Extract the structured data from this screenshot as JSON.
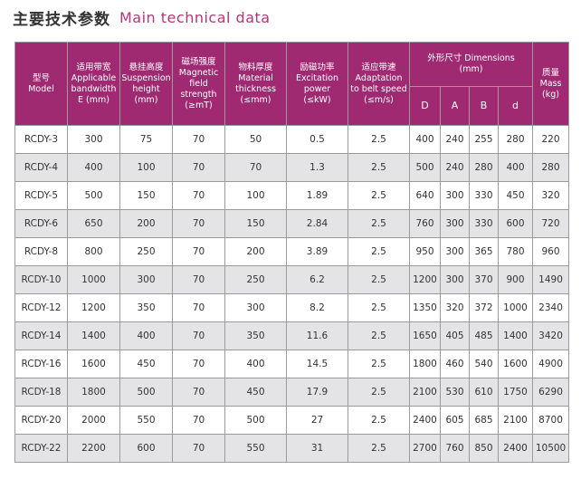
{
  "title": {
    "cn": "主要技术参数",
    "en": "Main technical data"
  },
  "columns": [
    {
      "cn": "型号",
      "en": [
        "Model"
      ]
    },
    {
      "cn": "适用带宽",
      "en": [
        "Applicable",
        "bandwidth",
        "E (mm)"
      ]
    },
    {
      "cn": "悬挂高度",
      "en": [
        "Suspension",
        "height",
        "(mm)"
      ]
    },
    {
      "cn": "磁场强度",
      "en": [
        "Magnetic",
        "field",
        "strength",
        "(≥mT)"
      ]
    },
    {
      "cn": "物料厚度",
      "en": [
        "Material",
        "thickness",
        "(≤mm)"
      ]
    },
    {
      "cn": "励磁功率",
      "en": [
        "Excitation",
        "power",
        "(≤kW)"
      ]
    },
    {
      "cn": "适应带速",
      "en": [
        "Adaptation",
        "to belt speed",
        "(≤m/s)"
      ]
    },
    {
      "cn": "外形尺寸 Dimensions",
      "en": [
        "(mm)"
      ]
    },
    {
      "cn": "质量",
      "en": [
        "Mass",
        "(kg)"
      ]
    }
  ],
  "dimension_subcolumns": [
    "D",
    "A",
    "B",
    "d"
  ],
  "rows": [
    [
      "RCDY-3",
      "300",
      "75",
      "70",
      "50",
      "0.5",
      "2.5",
      "400",
      "240",
      "255",
      "280",
      "220"
    ],
    [
      "RCDY-4",
      "400",
      "100",
      "70",
      "70",
      "1.3",
      "2.5",
      "500",
      "240",
      "280",
      "400",
      "280"
    ],
    [
      "RCDY-5",
      "500",
      "150",
      "70",
      "100",
      "1.89",
      "2.5",
      "640",
      "300",
      "330",
      "450",
      "320"
    ],
    [
      "RCDY-6",
      "650",
      "200",
      "70",
      "150",
      "2.84",
      "2.5",
      "760",
      "300",
      "330",
      "600",
      "720"
    ],
    [
      "RCDY-8",
      "800",
      "250",
      "70",
      "200",
      "3.89",
      "2.5",
      "950",
      "300",
      "365",
      "780",
      "960"
    ],
    [
      "RCDY-10",
      "1000",
      "300",
      "70",
      "250",
      "6.2",
      "2.5",
      "1200",
      "300",
      "370",
      "900",
      "1490"
    ],
    [
      "RCDY-12",
      "1200",
      "350",
      "70",
      "300",
      "8.2",
      "2.5",
      "1350",
      "320",
      "372",
      "1000",
      "2340"
    ],
    [
      "RCDY-14",
      "1400",
      "400",
      "70",
      "350",
      "11.6",
      "2.5",
      "1650",
      "405",
      "485",
      "1400",
      "3420"
    ],
    [
      "RCDY-16",
      "1600",
      "450",
      "70",
      "400",
      "14.5",
      "2.5",
      "1800",
      "460",
      "540",
      "1600",
      "4900"
    ],
    [
      "RCDY-18",
      "1800",
      "500",
      "70",
      "450",
      "17.9",
      "2.5",
      "2100",
      "530",
      "610",
      "1750",
      "6290"
    ],
    [
      "RCDY-20",
      "2000",
      "550",
      "70",
      "500",
      "27",
      "2.5",
      "2400",
      "605",
      "685",
      "2100",
      "8700"
    ],
    [
      "RCDY-22",
      "2200",
      "600",
      "70",
      "550",
      "31",
      "2.5",
      "2700",
      "760",
      "850",
      "2400",
      "10500"
    ]
  ],
  "colors": {
    "header_bg": "#a02a72",
    "title_accent": "#b0377a",
    "stripe": "#e4e4e6"
  }
}
